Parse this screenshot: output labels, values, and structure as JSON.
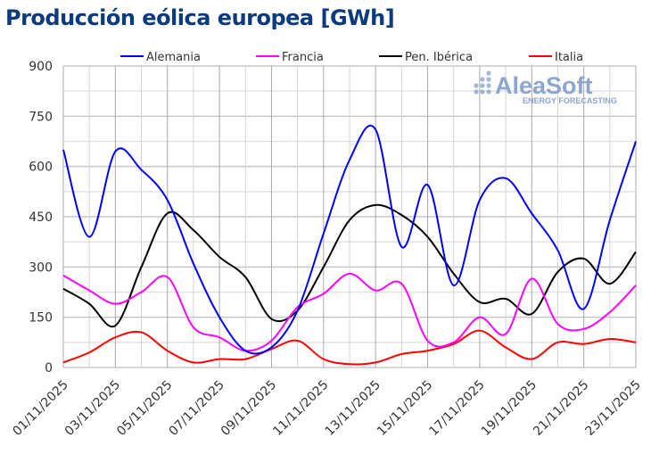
{
  "chart_data": {
    "type": "line",
    "title": "Producción eólica europea [GWh]",
    "xlabel": "",
    "ylabel": "",
    "ylim": [
      0,
      900
    ],
    "yticks": [
      0,
      150,
      300,
      450,
      600,
      750,
      900
    ],
    "grid": true,
    "legend_placement": "top",
    "x": [
      "01/11/2025",
      "02/11/2025",
      "03/11/2025",
      "04/11/2025",
      "05/11/2025",
      "06/11/2025",
      "07/11/2025",
      "08/11/2025",
      "09/11/2025",
      "10/11/2025",
      "11/11/2025",
      "12/11/2025",
      "13/11/2025",
      "14/11/2025",
      "15/11/2025",
      "16/11/2025",
      "17/11/2025",
      "18/11/2025",
      "19/11/2025",
      "20/11/2025",
      "21/11/2025",
      "22/11/2025",
      "23/11/2025"
    ],
    "xtick_labels": [
      "01/11/2025",
      "03/11/2025",
      "05/11/2025",
      "07/11/2025",
      "09/11/2025",
      "11/11/2025",
      "13/11/2025",
      "15/11/2025",
      "17/11/2025",
      "19/11/2025",
      "21/11/2025",
      "23/11/2025"
    ],
    "series": [
      {
        "name": "Alemania",
        "color": "#0000ff",
        "values": [
          650,
          390,
          645,
          590,
          500,
          310,
          150,
          50,
          60,
          170,
          400,
          620,
          710,
          360,
          545,
          245,
          500,
          565,
          460,
          350,
          175,
          440,
          675
        ]
      },
      {
        "name": "Francia",
        "color": "#ff00ff",
        "values": [
          275,
          230,
          190,
          225,
          270,
          120,
          90,
          50,
          80,
          180,
          220,
          280,
          230,
          250,
          80,
          75,
          150,
          100,
          265,
          130,
          115,
          165,
          245
        ]
      },
      {
        "name": "Pen. Ibérica",
        "color": "#000000",
        "values": [
          235,
          190,
          125,
          300,
          460,
          410,
          330,
          270,
          145,
          170,
          300,
          440,
          485,
          455,
          390,
          280,
          195,
          205,
          160,
          285,
          325,
          250,
          345
        ]
      },
      {
        "name": "Italia",
        "color": "#ff0000",
        "values": [
          15,
          45,
          90,
          105,
          50,
          15,
          25,
          25,
          55,
          80,
          25,
          10,
          15,
          40,
          50,
          70,
          110,
          60,
          25,
          75,
          70,
          85,
          75
        ]
      }
    ]
  },
  "logo": {
    "name": "AleaSoft",
    "tagline": "ENERGY FORECASTING"
  }
}
